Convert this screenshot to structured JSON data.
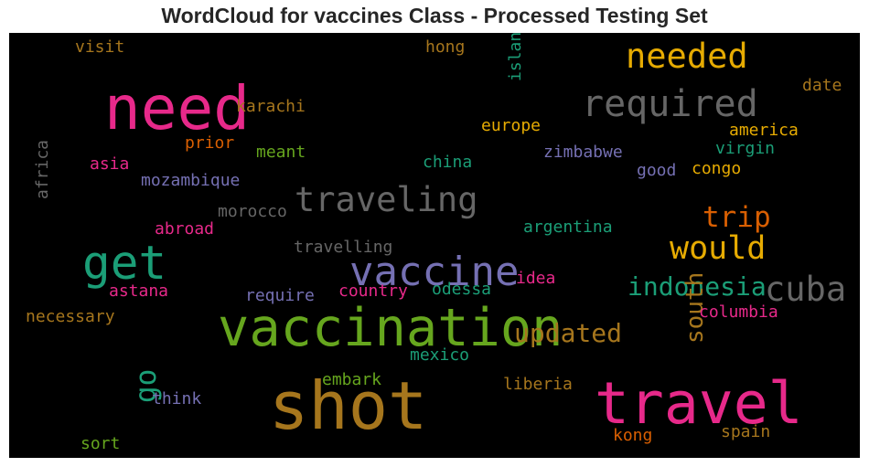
{
  "chart_data": {
    "type": "wordcloud",
    "title": "WordCloud for vaccines Class - Processed Testing Set",
    "background": "#000000",
    "words": [
      {
        "text": "shot",
        "weight": 1.0,
        "color": "#a6761d"
      },
      {
        "text": "need",
        "weight": 0.92,
        "color": "#e7298a"
      },
      {
        "text": "travel",
        "weight": 0.88,
        "color": "#e7298a"
      },
      {
        "text": "vaccination",
        "weight": 0.8,
        "color": "#66a61e"
      },
      {
        "text": "get",
        "weight": 0.72,
        "color": "#1b9e77"
      },
      {
        "text": "vaccine",
        "weight": 0.62,
        "color": "#7570b3"
      },
      {
        "text": "required",
        "weight": 0.57,
        "color": "#666666"
      },
      {
        "text": "needed",
        "weight": 0.53,
        "color": "#e6ab02"
      },
      {
        "text": "cuba",
        "weight": 0.53,
        "color": "#666666"
      },
      {
        "text": "traveling",
        "weight": 0.53,
        "color": "#666666"
      },
      {
        "text": "would",
        "weight": 0.5,
        "color": "#e6ab02"
      },
      {
        "text": "go",
        "weight": 0.44,
        "color": "#1b9e77"
      },
      {
        "text": "trip",
        "weight": 0.45,
        "color": "#d95f02"
      },
      {
        "text": "updated",
        "weight": 0.41,
        "color": "#a6761d"
      },
      {
        "text": "indonesia",
        "weight": 0.41,
        "color": "#1b9e77"
      },
      {
        "text": "south",
        "weight": 0.38,
        "color": "#a6761d"
      },
      {
        "text": "island",
        "weight": 0.27,
        "color": "#1b9e77"
      },
      {
        "text": "africa",
        "weight": 0.27,
        "color": "#666666"
      },
      {
        "text": "visit",
        "weight": 0.27,
        "color": "#a6761d"
      },
      {
        "text": "hong",
        "weight": 0.27,
        "color": "#a6761d"
      },
      {
        "text": "date",
        "weight": 0.27,
        "color": "#a6761d"
      },
      {
        "text": "karachi",
        "weight": 0.27,
        "color": "#a6761d"
      },
      {
        "text": "europe",
        "weight": 0.27,
        "color": "#e6ab02"
      },
      {
        "text": "america",
        "weight": 0.27,
        "color": "#e6ab02"
      },
      {
        "text": "prior",
        "weight": 0.27,
        "color": "#d95f02"
      },
      {
        "text": "meant",
        "weight": 0.27,
        "color": "#66a61e"
      },
      {
        "text": "zimbabwe",
        "weight": 0.27,
        "color": "#7570b3"
      },
      {
        "text": "virgin",
        "weight": 0.27,
        "color": "#1b9e77"
      },
      {
        "text": "asia",
        "weight": 0.27,
        "color": "#e7298a"
      },
      {
        "text": "china",
        "weight": 0.27,
        "color": "#1b9e77"
      },
      {
        "text": "good",
        "weight": 0.27,
        "color": "#7570b3"
      },
      {
        "text": "congo",
        "weight": 0.27,
        "color": "#e6ab02"
      },
      {
        "text": "mozambique",
        "weight": 0.27,
        "color": "#7570b3"
      },
      {
        "text": "morocco",
        "weight": 0.27,
        "color": "#666666"
      },
      {
        "text": "abroad",
        "weight": 0.27,
        "color": "#e7298a"
      },
      {
        "text": "argentina",
        "weight": 0.27,
        "color": "#1b9e77"
      },
      {
        "text": "travelling",
        "weight": 0.27,
        "color": "#666666"
      },
      {
        "text": "idea",
        "weight": 0.27,
        "color": "#e7298a"
      },
      {
        "text": "astana",
        "weight": 0.27,
        "color": "#e7298a"
      },
      {
        "text": "require",
        "weight": 0.27,
        "color": "#7570b3"
      },
      {
        "text": "country",
        "weight": 0.27,
        "color": "#e7298a"
      },
      {
        "text": "odessa",
        "weight": 0.27,
        "color": "#1b9e77"
      },
      {
        "text": "columbia",
        "weight": 0.27,
        "color": "#e7298a"
      },
      {
        "text": "necessary",
        "weight": 0.27,
        "color": "#a6761d"
      },
      {
        "text": "mexico",
        "weight": 0.27,
        "color": "#1b9e77"
      },
      {
        "text": "embark",
        "weight": 0.27,
        "color": "#66a61e"
      },
      {
        "text": "liberia",
        "weight": 0.27,
        "color": "#a6761d"
      },
      {
        "text": "think",
        "weight": 0.27,
        "color": "#7570b3"
      },
      {
        "text": "kong",
        "weight": 0.27,
        "color": "#d95f02"
      },
      {
        "text": "spain",
        "weight": 0.27,
        "color": "#a6761d"
      },
      {
        "text": "sort",
        "weight": 0.27,
        "color": "#66a61e"
      }
    ]
  }
}
